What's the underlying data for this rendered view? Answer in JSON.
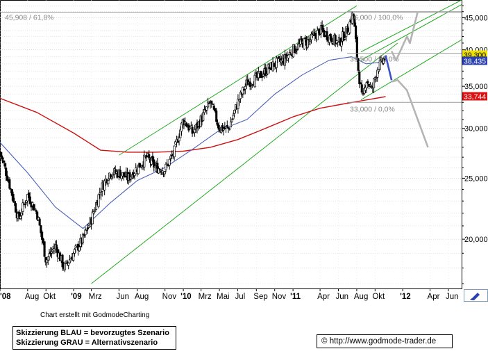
{
  "colors": {
    "price": "#000000",
    "ma_blue": "#4a5fb8",
    "ma_red": "#cc1111",
    "channel": "#22aa22",
    "fib_gray": "#9a9a9a",
    "scenario_blue": "#3a4fc8",
    "scenario_gray": "#b4b4b4",
    "badge_blue": "#2a3fb0",
    "badge_red": "#dd1111",
    "badge_yellow": "#f0e000"
  },
  "caption": "Chart erstellt mit GodmodeCharting",
  "legend": {
    "blue": "Skizzierung BLAU = bevorzugtes Szenario",
    "gray": "Skizzierung GRAU = Alternativszenario"
  },
  "footer": {
    "copyright_symbol": "©",
    "url": "http://www.godmode-trader.de"
  },
  "tool_icon": "drawing-tool-icon",
  "chart_data": {
    "type": "candlestick",
    "x_axis": {
      "tick_labels": [
        "'08",
        "Aug",
        "Okt",
        "'09",
        "Mrz",
        "Jun",
        "Aug",
        "Nov",
        "'10",
        "Mrz",
        "Mai",
        "Jul",
        "Sep",
        "Nov",
        "'11",
        "Apr",
        "Jun",
        "Aug",
        "Okt",
        "'12",
        "Apr",
        "Jun"
      ],
      "range": [
        "2008-05-01",
        "2012-07-15"
      ]
    },
    "y_axis": {
      "scale": "log",
      "tick_labels": [
        "45,000",
        "40,000",
        "35,000",
        "30,000",
        "25,000",
        "20,000"
      ],
      "ticks": [
        45,
        40,
        35,
        30,
        25,
        20
      ],
      "range": [
        16.7,
        48.0
      ]
    },
    "price_badges": [
      {
        "label": "39,300",
        "value": 39.3,
        "color": "badge_yellow"
      },
      {
        "label": "38,435",
        "value": 38.435,
        "color": "badge_blue"
      },
      {
        "label": "33,744",
        "value": 33.744,
        "color": "badge_red"
      }
    ],
    "fib_levels": [
      {
        "label": "45,908 / 61,8%",
        "value": 45.908
      },
      {
        "label": "46,000 / 100,0%",
        "value": 46.0
      },
      {
        "label": "39,500 / 50,0%",
        "value": 39.5
      },
      {
        "label": "33,000 / 0,0%",
        "value": 33.0
      }
    ],
    "close_series": [
      [
        "2008-05-01",
        27.5
      ],
      [
        "2008-06-01",
        24.5
      ],
      [
        "2008-07-01",
        21.5
      ],
      [
        "2008-08-01",
        23.5
      ],
      [
        "2008-09-01",
        22.0
      ],
      [
        "2008-10-01",
        18.5
      ],
      [
        "2008-11-01",
        19.5
      ],
      [
        "2008-12-01",
        18.0
      ],
      [
        "2009-01-01",
        19.0
      ],
      [
        "2009-02-01",
        20.0
      ],
      [
        "2009-03-01",
        21.5
      ],
      [
        "2009-04-01",
        24.0
      ],
      [
        "2009-05-01",
        25.5
      ],
      [
        "2009-06-01",
        25.5
      ],
      [
        "2009-07-01",
        25.0
      ],
      [
        "2009-08-01",
        26.0
      ],
      [
        "2009-09-01",
        27.0
      ],
      [
        "2009-10-01",
        26.0
      ],
      [
        "2009-11-01",
        25.8
      ],
      [
        "2009-12-01",
        27.5
      ],
      [
        "2010-01-01",
        31.0
      ],
      [
        "2010-02-01",
        29.5
      ],
      [
        "2010-03-01",
        31.0
      ],
      [
        "2010-04-01",
        33.0
      ],
      [
        "2010-05-01",
        30.0
      ],
      [
        "2010-06-01",
        30.0
      ],
      [
        "2010-07-01",
        33.0
      ],
      [
        "2010-08-01",
        35.5
      ],
      [
        "2010-09-01",
        36.0
      ],
      [
        "2010-10-01",
        37.0
      ],
      [
        "2010-11-01",
        38.0
      ],
      [
        "2010-12-01",
        38.5
      ],
      [
        "2011-01-01",
        40.0
      ],
      [
        "2011-02-01",
        41.0
      ],
      [
        "2011-03-01",
        41.5
      ],
      [
        "2011-04-01",
        43.0
      ],
      [
        "2011-05-01",
        42.0
      ],
      [
        "2011-06-01",
        41.0
      ],
      [
        "2011-07-01",
        43.0
      ],
      [
        "2011-07-20",
        45.8
      ],
      [
        "2011-08-05",
        37.5
      ],
      [
        "2011-08-20",
        33.0
      ],
      [
        "2011-09-01",
        36.0
      ],
      [
        "2011-09-20",
        34.5
      ],
      [
        "2011-10-10",
        37.5
      ],
      [
        "2011-11-05",
        39.0
      ]
    ],
    "ma_blue_series": [
      [
        "2008-05-01",
        28.5
      ],
      [
        "2008-08-01",
        25.5
      ],
      [
        "2008-11-01",
        22.5
      ],
      [
        "2009-02-01",
        20.8
      ],
      [
        "2009-05-01",
        22.8
      ],
      [
        "2009-08-01",
        24.8
      ],
      [
        "2009-11-01",
        26.0
      ],
      [
        "2010-02-01",
        27.8
      ],
      [
        "2010-05-01",
        29.8
      ],
      [
        "2010-08-01",
        31.0
      ],
      [
        "2010-11-01",
        34.0
      ],
      [
        "2011-02-01",
        36.5
      ],
      [
        "2011-05-01",
        38.5
      ],
      [
        "2011-07-15",
        39.0
      ],
      [
        "2011-09-01",
        38.0
      ],
      [
        "2011-11-05",
        38.3
      ]
    ],
    "ma_red_series": [
      [
        "2008-05-01",
        33.5
      ],
      [
        "2008-09-01",
        31.8
      ],
      [
        "2009-01-01",
        29.5
      ],
      [
        "2009-04-01",
        27.7
      ],
      [
        "2009-07-01",
        27.5
      ],
      [
        "2009-10-01",
        27.5
      ],
      [
        "2010-01-01",
        27.6
      ],
      [
        "2010-04-01",
        28.0
      ],
      [
        "2010-07-01",
        28.8
      ],
      [
        "2010-10-01",
        30.0
      ],
      [
        "2011-01-01",
        31.3
      ],
      [
        "2011-04-01",
        32.3
      ],
      [
        "2011-07-01",
        32.9
      ],
      [
        "2011-11-05",
        33.7
      ]
    ],
    "channel_lines": [
      {
        "from": [
          "2009-03-01",
          17.0
        ],
        "to": [
          "2011-12-15",
          41.0
        ]
      },
      {
        "from": [
          "2009-06-01",
          27.2
        ],
        "to": [
          "2011-08-01",
          47.0
        ]
      },
      {
        "from": [
          "2011-08-15",
          33.3
        ],
        "to": [
          "2012-07-15",
          41.5
        ]
      },
      {
        "from": [
          "2011-08-15",
          38.5
        ],
        "to": [
          "2012-07-15",
          47.2
        ]
      },
      {
        "from": [
          "2011-08-15",
          39.7
        ],
        "to": [
          "2012-07-15",
          48.0
        ]
      }
    ],
    "scenario_blue": [
      [
        "2011-11-05",
        39.2
      ],
      [
        "2011-11-25",
        35.8
      ]
    ],
    "scenario_gray": [
      [
        [
          "2011-11-25",
          39.8
        ],
        [
          "2011-12-10",
          38.5
        ],
        [
          "2012-01-15",
          42.0
        ],
        [
          "2012-01-25",
          41.0
        ],
        [
          "2012-02-20",
          46.0
        ]
      ],
      [
        [
          "2011-11-25",
          35.6
        ],
        [
          "2011-12-15",
          35.8
        ],
        [
          "2012-01-15",
          34.5
        ],
        [
          "2012-03-25",
          28.0
        ]
      ]
    ]
  }
}
